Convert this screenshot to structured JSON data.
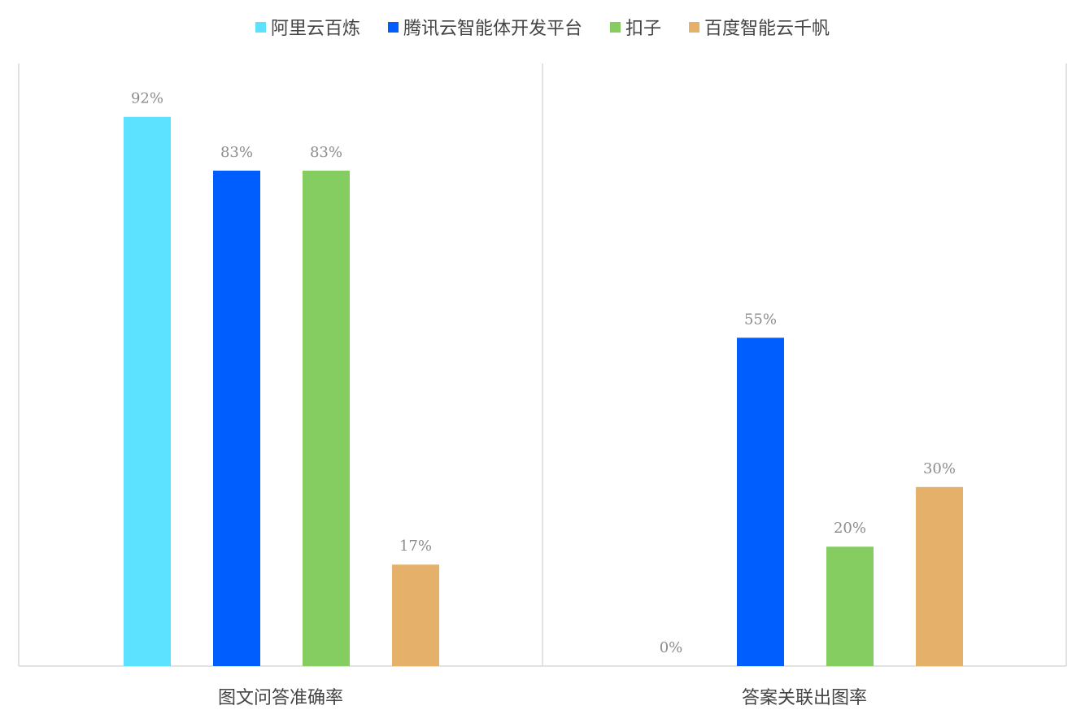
{
  "chart_data": {
    "type": "bar",
    "categories": [
      "图文问答准确率",
      "答案关联出图率"
    ],
    "series": [
      {
        "name": "阿里云百炼",
        "color": "#5ce1ff",
        "values": [
          92,
          0
        ],
        "labels": [
          "92%",
          "0%"
        ]
      },
      {
        "name": "腾讯云智能体开发平台",
        "color": "#005eff",
        "values": [
          83,
          55
        ],
        "labels": [
          "83%",
          "55%"
        ]
      },
      {
        "name": "扣子",
        "color": "#85cc61",
        "values": [
          83,
          20
        ],
        "labels": [
          "83%",
          "20%"
        ]
      },
      {
        "name": "百度智能云千帆",
        "color": "#e5b16a",
        "values": [
          17,
          30
        ],
        "labels": [
          "17%",
          "30%"
        ]
      }
    ],
    "ylim": [
      0,
      100
    ],
    "legend": "top",
    "grid": false,
    "title": "",
    "xlabel": "",
    "ylabel": ""
  }
}
